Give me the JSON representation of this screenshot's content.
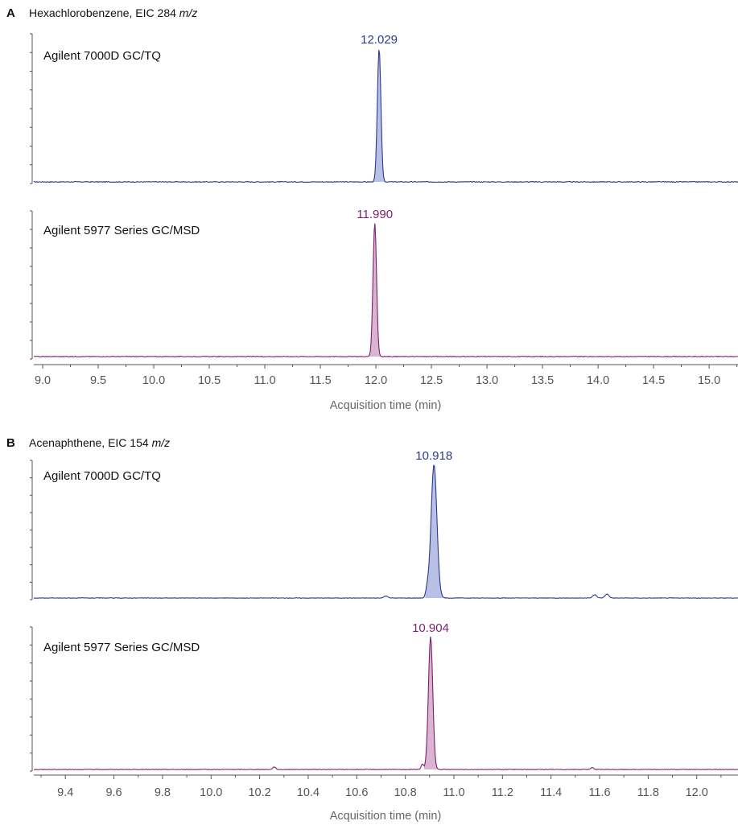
{
  "chart_data": [
    {
      "panel": "A",
      "type": "line",
      "title": "Hexachlorobenzene, EIC 284",
      "title_unit": "m/z",
      "xlabel": "Acquisition time (min)",
      "xlim": [
        8.92,
        15.26
      ],
      "xticks": [
        "9.0",
        "9.5",
        "10.0",
        "10.5",
        "11.0",
        "11.5",
        "12.0",
        "12.5",
        "13.0",
        "13.5",
        "14.0",
        "14.5",
        "15.0"
      ],
      "series": [
        {
          "name": "Agilent 7000D GC/TQ",
          "color": "#2b3a8c",
          "fill": "#b8c0e6",
          "peak_label": "12.029",
          "peaks": [
            {
              "rt": 12.029,
              "height": 1.0,
              "width": 0.016
            }
          ],
          "noise": 0.006
        },
        {
          "name": "Agilent 5977 Series GC/MSD",
          "color": "#7d1f6e",
          "fill": "#d9b5d2",
          "peak_label": "11.990",
          "peaks": [
            {
              "rt": 11.99,
              "height": 1.0,
              "width": 0.016
            }
          ],
          "noise": 0.005
        }
      ]
    },
    {
      "panel": "B",
      "type": "line",
      "title": "Acenaphthene, EIC 154",
      "title_unit": "m/z",
      "xlabel": "Acquisition time (min)",
      "xlim": [
        9.27,
        12.17
      ],
      "xticks": [
        "9.4",
        "9.6",
        "9.8",
        "10.0",
        "10.2",
        "10.4",
        "10.6",
        "10.8",
        "11.0",
        "11.2",
        "11.4",
        "11.6",
        "11.8",
        "12.0"
      ],
      "series": [
        {
          "name": "Agilent 7000D GC/TQ",
          "color": "#2b3a8c",
          "fill": "#b8c0e6",
          "peak_label": "10.918",
          "peaks": [
            {
              "rt": 10.918,
              "height": 1.0,
              "width": 0.012
            },
            {
              "rt": 10.89,
              "height": 0.06,
              "width": 0.006
            },
            {
              "rt": 10.72,
              "height": 0.015,
              "width": 0.008
            },
            {
              "rt": 11.58,
              "height": 0.025,
              "width": 0.008
            },
            {
              "rt": 11.63,
              "height": 0.03,
              "width": 0.008
            }
          ],
          "noise": 0.004
        },
        {
          "name": "Agilent 5977 Series GC/MSD",
          "color": "#7d1f6e",
          "fill": "#d9b5d2",
          "peak_label": "10.904",
          "peaks": [
            {
              "rt": 10.904,
              "height": 1.0,
              "width": 0.009
            },
            {
              "rt": 10.87,
              "height": 0.04,
              "width": 0.005
            },
            {
              "rt": 10.26,
              "height": 0.02,
              "width": 0.006
            },
            {
              "rt": 11.57,
              "height": 0.015,
              "width": 0.006
            }
          ],
          "noise": 0.004
        }
      ]
    }
  ]
}
